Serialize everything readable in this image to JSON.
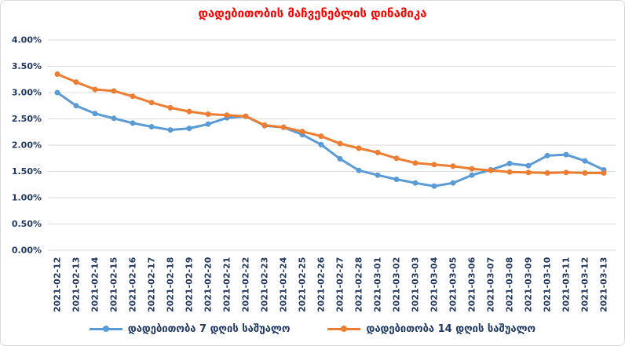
{
  "chart_data": {
    "type": "line",
    "title": "დადებითობის მაჩვენებლის დინამიკა",
    "title_color": "#FF0000",
    "axis_label_color": "#1F3864",
    "gridline_color": "#D9D9D9",
    "grid": true,
    "legend_position": "bottom",
    "xlabel": "",
    "ylabel": "",
    "ylim": [
      0,
      4
    ],
    "ytick_step": 0.5,
    "ytick_labels": [
      "0.00%",
      "0.50%",
      "1.00%",
      "1.50%",
      "2.00%",
      "2.50%",
      "3.00%",
      "3.50%",
      "4.00%"
    ],
    "categories": [
      "2021-02-12",
      "2021-02-13",
      "2021-02-14",
      "2021-02-15",
      "2021-02-16",
      "2021-02-17",
      "2021-02-18",
      "2021-02-19",
      "2021-02-20",
      "2021-02-21",
      "2021-02-22",
      "2021-02-23",
      "2021-02-24",
      "2021-02-25",
      "2021-02-26",
      "2021-02-27",
      "2021-02-28",
      "2021-03-01",
      "2021-03-02",
      "2021-03-03",
      "2021-03-04",
      "2021-03-05",
      "2021-03-06",
      "2021-03-07",
      "2021-03-08",
      "2021-03-09",
      "2021-03-10",
      "2021-03-11",
      "2021-03-12",
      "2021-03-13"
    ],
    "series": [
      {
        "name": "დადებითობა 7 დღის საშუალო",
        "color": "#5B9BD5",
        "values": [
          3.0,
          2.75,
          2.6,
          2.51,
          2.42,
          2.35,
          2.29,
          2.32,
          2.4,
          2.52,
          2.55,
          2.37,
          2.34,
          2.2,
          2.01,
          1.74,
          1.52,
          1.43,
          1.35,
          1.28,
          1.22,
          1.28,
          1.43,
          1.53,
          1.65,
          1.61,
          1.8,
          1.82,
          1.7,
          1.53
        ]
      },
      {
        "name": "დადებითობა 14 დღის საშუალო",
        "color": "#ED7D31",
        "values": [
          3.35,
          3.2,
          3.06,
          3.03,
          2.93,
          2.81,
          2.71,
          2.64,
          2.59,
          2.57,
          2.55,
          2.38,
          2.34,
          2.26,
          2.17,
          2.03,
          1.94,
          1.86,
          1.75,
          1.66,
          1.63,
          1.6,
          1.55,
          1.52,
          1.49,
          1.48,
          1.47,
          1.48,
          1.47,
          1.47
        ]
      }
    ]
  }
}
